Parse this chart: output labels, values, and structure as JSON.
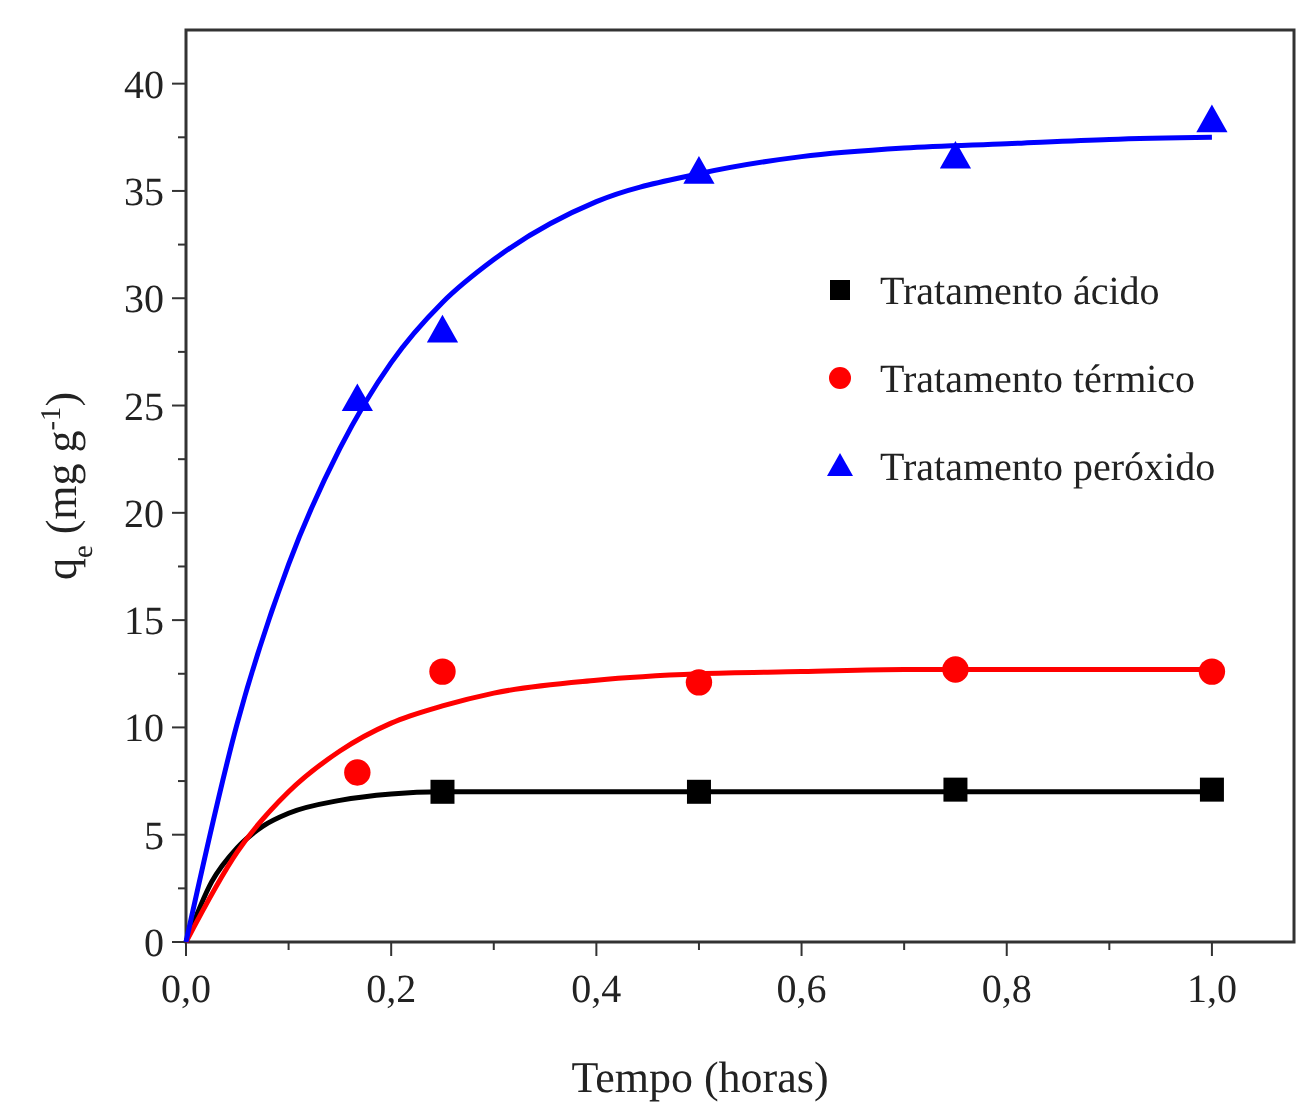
{
  "chart_data": {
    "type": "scatter",
    "xlabel": "Tempo (horas)",
    "ylabel": "q$_{e}$ (mg g$^{-1}$)",
    "xlim": [
      0,
      1.08
    ],
    "ylim": [
      0,
      42.5
    ],
    "xticks": [
      {
        "value": 0,
        "label": "0,0"
      },
      {
        "value": 0.1,
        "label": null
      },
      {
        "value": 0.2,
        "label": "0,2"
      },
      {
        "value": 0.3,
        "label": null
      },
      {
        "value": 0.4,
        "label": "0,4"
      },
      {
        "value": 0.5,
        "label": null
      },
      {
        "value": 0.6,
        "label": "0,6"
      },
      {
        "value": 0.7,
        "label": null
      },
      {
        "value": 0.8,
        "label": "0,8"
      },
      {
        "value": 0.9,
        "label": null
      },
      {
        "value": 1.0,
        "label": "1,0"
      }
    ],
    "yticks": [
      0,
      {
        "value": 2.5,
        "label": null
      },
      5,
      {
        "value": 7.5,
        "label": null
      },
      10,
      {
        "value": 12.5,
        "label": null
      },
      15,
      {
        "value": 17.5,
        "label": null
      },
      20,
      {
        "value": 22.5,
        "label": null
      },
      25,
      {
        "value": 27.5,
        "label": null
      },
      30,
      {
        "value": 32.5,
        "label": null
      },
      35,
      {
        "value": 37.5,
        "label": null
      },
      40
    ],
    "legend": "top right",
    "grid": false,
    "series": [
      {
        "name": "Tratamento ácido",
        "marker": "square",
        "color": "#000000",
        "x": [
          0.25,
          0.5,
          0.75,
          1.0
        ],
        "values": [
          7.0,
          7.0,
          7.1,
          7.1
        ]
      },
      {
        "name": "Tratamento térmico",
        "marker": "circle",
        "color": "#ff0000",
        "x": [
          0.167,
          0.25,
          0.5,
          0.75,
          1.0
        ],
        "values": [
          7.9,
          12.6,
          12.1,
          12.7,
          12.6
        ]
      },
      {
        "name": "Tratamento peróxido",
        "marker": "triangle",
        "color": "#0000ff",
        "x": [
          0.167,
          0.25,
          0.5,
          0.75,
          1.0
        ],
        "values": [
          25.3,
          28.5,
          35.9,
          36.6,
          38.3
        ]
      },
      {
        "type": "line",
        "marker": "none",
        "color": "#000000",
        "x": [
          0,
          0.025,
          0.05,
          0.075,
          0.1,
          0.15,
          0.2,
          0.25,
          0.3,
          0.5,
          0.75,
          1.0
        ],
        "values": [
          0,
          2.8,
          4.4,
          5.4,
          6.0,
          6.6,
          6.9,
          7.0,
          7.0,
          7.0,
          7.0,
          7.0
        ]
      },
      {
        "type": "line",
        "marker": "none",
        "color": "#ff0000",
        "x": [
          0,
          0.05,
          0.1,
          0.15,
          0.2,
          0.25,
          0.3,
          0.4,
          0.5,
          0.6,
          0.7,
          0.8,
          0.9,
          1.0
        ],
        "values": [
          0,
          4.2,
          7.0,
          8.9,
          10.2,
          11.0,
          11.6,
          12.2,
          12.5,
          12.6,
          12.7,
          12.7,
          12.7,
          12.7
        ]
      },
      {
        "type": "line",
        "marker": "none",
        "color": "#0000ff",
        "x": [
          0,
          0.05,
          0.1,
          0.15,
          0.2,
          0.25,
          0.3,
          0.4,
          0.5,
          0.6,
          0.7,
          0.8,
          0.9,
          1.0
        ],
        "values": [
          0,
          10.2,
          17.6,
          23.0,
          27.0,
          29.8,
          31.8,
          34.5,
          35.8,
          36.6,
          37.0,
          37.2,
          37.4,
          37.5
        ]
      }
    ]
  }
}
